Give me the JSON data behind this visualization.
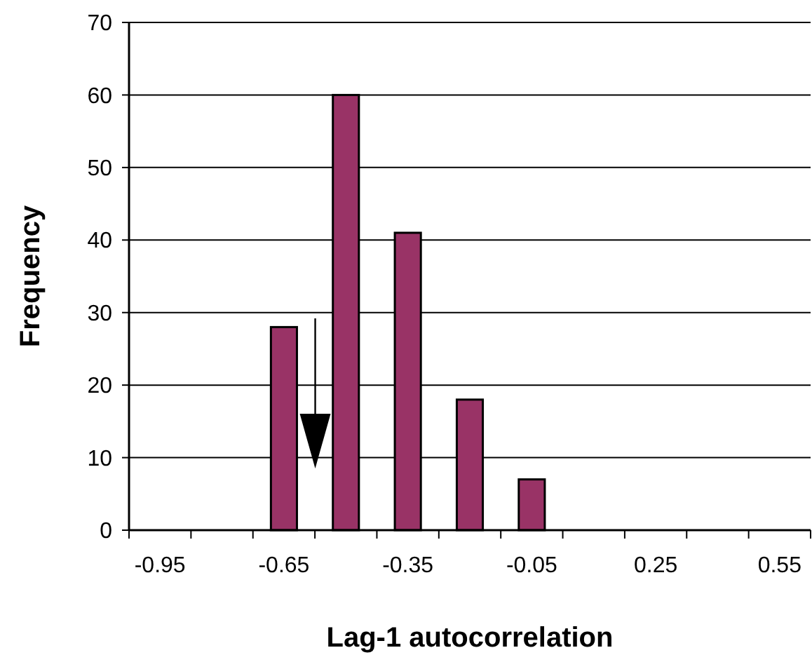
{
  "chart_data": {
    "type": "bar",
    "xlabel": "Lag-1 autocorrelation",
    "ylabel": "Frequency",
    "categories": [
      "-0.95",
      null,
      "-0.65",
      null,
      "-0.35",
      null,
      "-0.05",
      null,
      "0.25",
      null,
      "0.55"
    ],
    "values": [
      0,
      0,
      28,
      60,
      41,
      18,
      7,
      0,
      0,
      0,
      0
    ],
    "color": "#993366",
    "ylim": [
      0,
      70
    ],
    "yticks": [
      0,
      10,
      20,
      30,
      40,
      50,
      60,
      70
    ],
    "grid": "y"
  }
}
